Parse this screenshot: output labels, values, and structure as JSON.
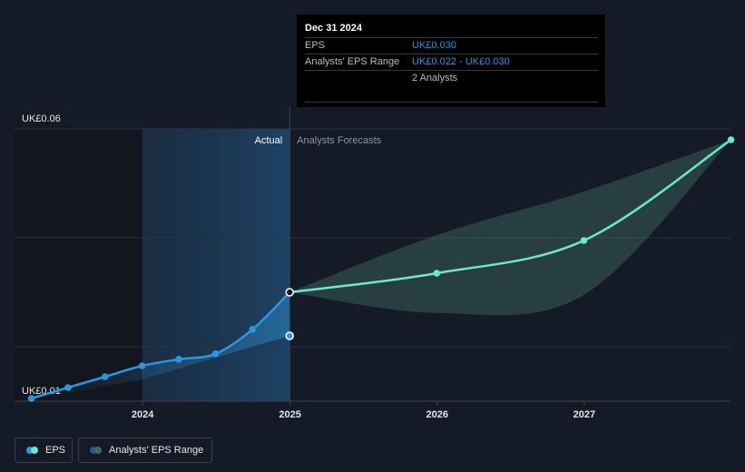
{
  "chart_data": {
    "type": "line",
    "title": "",
    "y_axis": {
      "min_label": "UK£0.01",
      "max_label": "UK£0.06",
      "ylim": [
        0.01,
        0.06
      ],
      "gridlines": [
        0.02,
        0.04
      ]
    },
    "x_axis": {
      "ticks": [
        "2024",
        "2025",
        "2026",
        "2027"
      ]
    },
    "regions": {
      "actual_label": "Actual",
      "forecast_label": "Analysts Forecasts"
    },
    "series": [
      {
        "name": "EPS",
        "color": "#2f95dc",
        "points": [
          {
            "x": "2023-03-31",
            "y": 0.0105
          },
          {
            "x": "2023-06-30",
            "y": 0.0125
          },
          {
            "x": "2023-09-30",
            "y": 0.0145
          },
          {
            "x": "2023-12-31",
            "y": 0.0165
          },
          {
            "x": "2024-03-31",
            "y": 0.0177
          },
          {
            "x": "2024-06-30",
            "y": 0.0187
          },
          {
            "x": "2024-09-30",
            "y": 0.0232
          },
          {
            "x": "2024-12-31",
            "y": 0.03
          }
        ]
      },
      {
        "name": "EPS forecast",
        "color": "#6ee8cc",
        "points": [
          {
            "x": "2024-12-31",
            "y": 0.03
          },
          {
            "x": "2025-12-31",
            "y": 0.0335
          },
          {
            "x": "2026-12-31",
            "y": 0.0395
          },
          {
            "x": "2027-12-31",
            "y": 0.058
          }
        ]
      }
    ],
    "range_series": {
      "name": "Analysts' EPS Range",
      "actual_low": [
        {
          "x": "2023-06-30",
          "y": 0.0115
        },
        {
          "x": "2023-12-31",
          "y": 0.014
        },
        {
          "x": "2024-06-30",
          "y": 0.018
        },
        {
          "x": "2024-12-31",
          "y": 0.022
        }
      ],
      "forecast_high": [
        {
          "x": "2024-12-31",
          "y": 0.03
        },
        {
          "x": "2025-12-31",
          "y": 0.0405
        },
        {
          "x": "2026-12-31",
          "y": 0.0485
        },
        {
          "x": "2027-12-31",
          "y": 0.058
        }
      ],
      "forecast_low": [
        {
          "x": "2024-12-31",
          "y": 0.03
        },
        {
          "x": "2025-12-31",
          "y": 0.0262
        },
        {
          "x": "2026-12-31",
          "y": 0.0295
        },
        {
          "x": "2027-12-31",
          "y": 0.058
        }
      ]
    },
    "highlight": {
      "date": "Dec 31 2024",
      "eps_label": "EPS",
      "eps_value": "UK£0.030",
      "range_label": "Analysts' EPS Range",
      "range_value": "UK£0.022 - UK£0.030",
      "analysts": "2 Analysts"
    },
    "legend": [
      {
        "label": "EPS",
        "colors": [
          "#2f95dc",
          "#6ee8cc"
        ]
      },
      {
        "label": "Analysts' EPS Range",
        "colors": [
          "#2a5a85",
          "#3d6b66"
        ]
      }
    ]
  }
}
